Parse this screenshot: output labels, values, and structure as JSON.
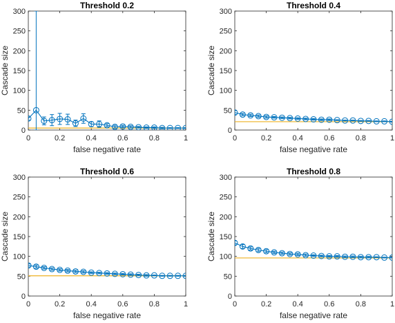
{
  "colors": {
    "series": "#0072BD",
    "reference": "#EDB120",
    "axis": "#262626"
  },
  "chart_data": [
    {
      "type": "line",
      "title": "Threshold 0.2",
      "xlabel": "false negative rate",
      "ylabel": "Cascade size",
      "xlim": [
        0,
        1
      ],
      "ylim": [
        0,
        300
      ],
      "xticks": [
        "0",
        "0.2",
        "0.4",
        "0.6",
        "0.8",
        "1"
      ],
      "yticks": [
        "0",
        "50",
        "100",
        "150",
        "200",
        "250",
        "300"
      ],
      "x": [
        0,
        0.05,
        0.1,
        0.15,
        0.2,
        0.25,
        0.3,
        0.35,
        0.4,
        0.45,
        0.5,
        0.55,
        0.6,
        0.65,
        0.7,
        0.75,
        0.8,
        0.85,
        0.9,
        0.95,
        1.0
      ],
      "y": [
        29,
        50,
        23,
        25,
        28,
        27,
        17,
        29,
        15,
        15,
        12,
        8,
        9,
        8,
        7,
        6,
        6,
        5,
        5,
        5,
        5
      ],
      "err": [
        4,
        300,
        10,
        14,
        14,
        13,
        8,
        12,
        6,
        8,
        4,
        4,
        3,
        3,
        2,
        2,
        2,
        2,
        1,
        1,
        1
      ],
      "reference": 5
    },
    {
      "type": "line",
      "title": "Threshold 0.4",
      "xlabel": "false negative rate",
      "ylabel": "Cascade size",
      "xlim": [
        0,
        1
      ],
      "ylim": [
        0,
        300
      ],
      "xticks": [
        "0",
        "0.2",
        "0.4",
        "0.6",
        "0.8",
        "1"
      ],
      "yticks": [
        "0",
        "50",
        "100",
        "150",
        "200",
        "250",
        "300"
      ],
      "x": [
        0,
        0.05,
        0.1,
        0.15,
        0.2,
        0.25,
        0.3,
        0.35,
        0.4,
        0.45,
        0.5,
        0.55,
        0.6,
        0.65,
        0.7,
        0.75,
        0.8,
        0.85,
        0.9,
        0.95,
        1.0
      ],
      "y": [
        44,
        39,
        37,
        35,
        33,
        32,
        31,
        30,
        29,
        28,
        27,
        26,
        26,
        25,
        24,
        24,
        23,
        23,
        22,
        22,
        21
      ],
      "err": [
        5,
        3,
        3,
        3,
        3,
        2,
        2,
        2,
        2,
        2,
        2,
        2,
        2,
        1,
        1,
        1,
        1,
        1,
        1,
        1,
        1
      ],
      "reference": 21
    },
    {
      "type": "line",
      "title": "Threshold 0.6",
      "xlabel": "false negative rate",
      "ylabel": "Cascade size",
      "xlim": [
        0,
        1
      ],
      "ylim": [
        0,
        300
      ],
      "xticks": [
        "0",
        "0.2",
        "0.4",
        "0.6",
        "0.8",
        "1"
      ],
      "yticks": [
        "0",
        "50",
        "100",
        "150",
        "200",
        "250",
        "300"
      ],
      "x": [
        0,
        0.05,
        0.1,
        0.15,
        0.2,
        0.25,
        0.3,
        0.35,
        0.4,
        0.45,
        0.5,
        0.55,
        0.6,
        0.65,
        0.7,
        0.75,
        0.8,
        0.85,
        0.9,
        0.95,
        1.0
      ],
      "y": [
        77,
        74,
        71,
        68,
        66,
        64,
        62,
        61,
        59,
        58,
        57,
        56,
        55,
        54,
        53,
        52,
        52,
        51,
        51,
        51,
        51
      ],
      "err": [
        4,
        4,
        3,
        3,
        3,
        3,
        3,
        3,
        2,
        2,
        2,
        2,
        2,
        2,
        2,
        2,
        1,
        1,
        1,
        1,
        1
      ],
      "reference": 51
    },
    {
      "type": "line",
      "title": "Threshold 0.8",
      "xlabel": "false negative rate",
      "ylabel": "Cascade size",
      "xlim": [
        0,
        1
      ],
      "ylim": [
        0,
        300
      ],
      "xticks": [
        "0",
        "0.2",
        "0.4",
        "0.6",
        "0.8",
        "1"
      ],
      "yticks": [
        "0",
        "50",
        "100",
        "150",
        "200",
        "250",
        "300"
      ],
      "x": [
        0,
        0.05,
        0.1,
        0.15,
        0.2,
        0.25,
        0.3,
        0.35,
        0.4,
        0.45,
        0.5,
        0.55,
        0.6,
        0.65,
        0.7,
        0.75,
        0.8,
        0.85,
        0.9,
        0.95,
        1.0
      ],
      "y": [
        134,
        125,
        120,
        116,
        113,
        110,
        108,
        106,
        105,
        103,
        102,
        101,
        100,
        100,
        99,
        99,
        98,
        98,
        98,
        97,
        97
      ],
      "err": [
        5,
        5,
        4,
        4,
        4,
        3,
        3,
        3,
        3,
        3,
        2,
        2,
        2,
        2,
        2,
        2,
        2,
        2,
        1,
        1,
        1
      ],
      "reference": 96
    }
  ]
}
